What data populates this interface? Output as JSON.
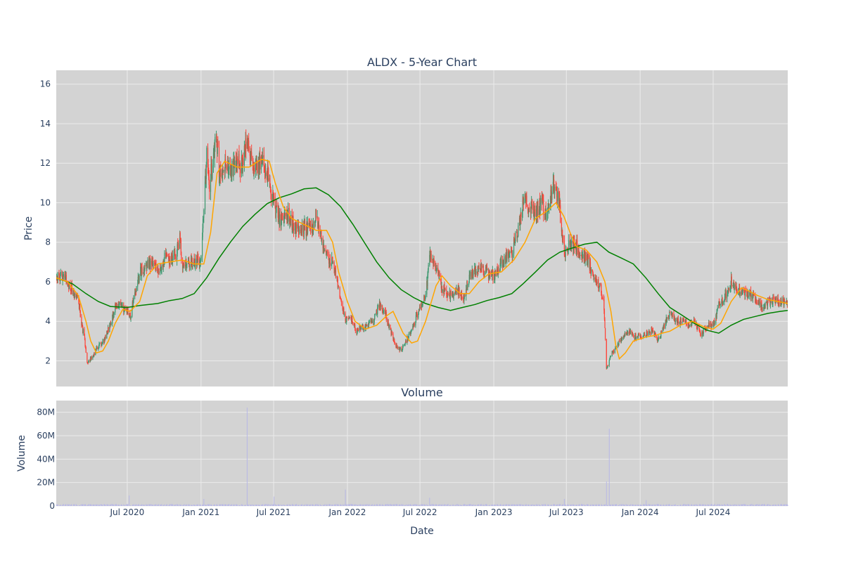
{
  "chart_data": [
    {
      "type": "candlestick",
      "title": "ALDX - 5-Year Chart",
      "xlabel": "",
      "ylabel": "Price",
      "ylim": [
        0.7,
        16.7
      ],
      "y_ticks": [
        2,
        4,
        6,
        8,
        10,
        12,
        14,
        16
      ],
      "x_range": [
        "2020-01-06",
        "2025-01-03"
      ],
      "x_ticks": [
        {
          "date": "2020-07-01",
          "label": "Jul 2020"
        },
        {
          "date": "2021-01-01",
          "label": "Jan 2021"
        },
        {
          "date": "2021-07-01",
          "label": "Jul 2021"
        },
        {
          "date": "2022-01-01",
          "label": "Jan 2022"
        },
        {
          "date": "2022-07-01",
          "label": "Jul 2022"
        },
        {
          "date": "2023-01-01",
          "label": "Jan 2023"
        },
        {
          "date": "2023-07-01",
          "label": "Jul 2023"
        },
        {
          "date": "2024-01-01",
          "label": "Jan 2024"
        },
        {
          "date": "2024-07-01",
          "label": "Jul 2024"
        }
      ],
      "grid": true,
      "colors": {
        "background": "#d3d3d3",
        "grid": "#ebebeb",
        "up": "#3d9970",
        "down": "#ff4136",
        "ma_short": "#ffa500",
        "ma_long": "#008000"
      },
      "price_path": [
        [
          "2020-01-06",
          6.2
        ],
        [
          "2020-01-20",
          6.3
        ],
        [
          "2020-02-03",
          6.0
        ],
        [
          "2020-02-17",
          5.5
        ],
        [
          "2020-03-02",
          5.0
        ],
        [
          "2020-03-09",
          3.8
        ],
        [
          "2020-03-16",
          3.2
        ],
        [
          "2020-03-23",
          1.9
        ],
        [
          "2020-04-06",
          2.2
        ],
        [
          "2020-04-20",
          2.8
        ],
        [
          "2020-05-04",
          3.0
        ],
        [
          "2020-05-18",
          3.8
        ],
        [
          "2020-06-01",
          4.7
        ],
        [
          "2020-06-15",
          4.8
        ],
        [
          "2020-07-01",
          4.5
        ],
        [
          "2020-07-08",
          4.2
        ],
        [
          "2020-07-20",
          5.5
        ],
        [
          "2020-08-03",
          6.5
        ],
        [
          "2020-08-17",
          6.8
        ],
        [
          "2020-09-01",
          7.0
        ],
        [
          "2020-09-15",
          6.5
        ],
        [
          "2020-10-01",
          7.2
        ],
        [
          "2020-10-15",
          7.0
        ],
        [
          "2020-11-01",
          7.5
        ],
        [
          "2020-11-09",
          8.3
        ],
        [
          "2020-11-16",
          6.8
        ],
        [
          "2020-12-01",
          6.9
        ],
        [
          "2020-12-15",
          7.0
        ],
        [
          "2021-01-01",
          7.0
        ],
        [
          "2021-01-08",
          9.5
        ],
        [
          "2021-01-15",
          12.5
        ],
        [
          "2021-01-22",
          11.0
        ],
        [
          "2021-02-01",
          12.2
        ],
        [
          "2021-02-08",
          13.5
        ],
        [
          "2021-02-15",
          11.5
        ],
        [
          "2021-03-01",
          12.0
        ],
        [
          "2021-03-15",
          11.5
        ],
        [
          "2021-04-01",
          12.0
        ],
        [
          "2021-04-15",
          11.8
        ],
        [
          "2021-04-26",
          13.5
        ],
        [
          "2021-05-03",
          12.2
        ],
        [
          "2021-05-17",
          11.7
        ],
        [
          "2021-06-01",
          12.3
        ],
        [
          "2021-06-15",
          11.5
        ],
        [
          "2021-07-01",
          10.0
        ],
        [
          "2021-07-15",
          9.0
        ],
        [
          "2021-08-01",
          9.5
        ],
        [
          "2021-08-15",
          9.0
        ],
        [
          "2021-09-01",
          8.5
        ],
        [
          "2021-09-15",
          8.8
        ],
        [
          "2021-10-01",
          8.5
        ],
        [
          "2021-10-15",
          9.3
        ],
        [
          "2021-11-01",
          8.0
        ],
        [
          "2021-11-15",
          7.2
        ],
        [
          "2021-11-29",
          6.8
        ],
        [
          "2021-12-27",
          4.0
        ],
        [
          "2022-01-10",
          4.2
        ],
        [
          "2022-01-24",
          3.5
        ],
        [
          "2022-02-07",
          3.7
        ],
        [
          "2022-02-21",
          3.8
        ],
        [
          "2022-03-07",
          4.0
        ],
        [
          "2022-03-21",
          4.8
        ],
        [
          "2022-04-04",
          4.5
        ],
        [
          "2022-04-18",
          3.5
        ],
        [
          "2022-05-02",
          2.8
        ],
        [
          "2022-05-16",
          2.5
        ],
        [
          "2022-06-01",
          3.2
        ],
        [
          "2022-06-15",
          3.8
        ],
        [
          "2022-07-01",
          4.8
        ],
        [
          "2022-07-15",
          5.2
        ],
        [
          "2022-07-25",
          7.3
        ],
        [
          "2022-08-08",
          7.0
        ],
        [
          "2022-08-22",
          5.8
        ],
        [
          "2022-09-05",
          5.5
        ],
        [
          "2022-09-19",
          5.3
        ],
        [
          "2022-10-03",
          5.5
        ],
        [
          "2022-10-17",
          5.2
        ],
        [
          "2022-11-01",
          6.2
        ],
        [
          "2022-11-15",
          6.5
        ],
        [
          "2022-12-01",
          6.8
        ],
        [
          "2022-12-15",
          6.5
        ],
        [
          "2023-01-01",
          6.3
        ],
        [
          "2023-01-15",
          6.8
        ],
        [
          "2023-02-01",
          7.2
        ],
        [
          "2023-02-15",
          7.5
        ],
        [
          "2023-03-01",
          8.5
        ],
        [
          "2023-03-15",
          10.2
        ],
        [
          "2023-04-01",
          9.8
        ],
        [
          "2023-04-15",
          9.5
        ],
        [
          "2023-05-01",
          10.0
        ],
        [
          "2023-05-15",
          9.3
        ],
        [
          "2023-05-29",
          11.0
        ],
        [
          "2023-06-12",
          10.3
        ],
        [
          "2023-06-26",
          7.2
        ],
        [
          "2023-07-10",
          8.0
        ],
        [
          "2023-07-24",
          7.8
        ],
        [
          "2023-08-07",
          7.5
        ],
        [
          "2023-08-21",
          7.2
        ],
        [
          "2023-09-04",
          6.5
        ],
        [
          "2023-09-18",
          6.0
        ],
        [
          "2023-10-02",
          5.2
        ],
        [
          "2023-10-09",
          1.6
        ],
        [
          "2023-10-23",
          2.4
        ],
        [
          "2023-11-06",
          2.8
        ],
        [
          "2023-11-20",
          3.2
        ],
        [
          "2023-12-04",
          3.5
        ],
        [
          "2023-12-18",
          3.2
        ],
        [
          "2024-01-01",
          3.3
        ],
        [
          "2024-01-15",
          3.3
        ],
        [
          "2024-02-01",
          3.6
        ],
        [
          "2024-02-15",
          3.0
        ],
        [
          "2024-03-01",
          3.8
        ],
        [
          "2024-03-15",
          4.5
        ],
        [
          "2024-04-01",
          4.0
        ],
        [
          "2024-04-15",
          4.0
        ],
        [
          "2024-05-01",
          3.8
        ],
        [
          "2024-05-15",
          4.0
        ],
        [
          "2024-06-01",
          3.3
        ],
        [
          "2024-06-15",
          3.8
        ],
        [
          "2024-07-01",
          3.8
        ],
        [
          "2024-07-15",
          4.8
        ],
        [
          "2024-08-01",
          5.3
        ],
        [
          "2024-08-15",
          6.0
        ],
        [
          "2024-09-01",
          5.5
        ],
        [
          "2024-09-15",
          5.4
        ],
        [
          "2024-10-01",
          5.5
        ],
        [
          "2024-10-15",
          5.0
        ],
        [
          "2024-11-01",
          4.8
        ],
        [
          "2024-11-15",
          5.0
        ],
        [
          "2024-12-01",
          5.1
        ],
        [
          "2024-12-15",
          5.0
        ],
        [
          "2025-01-03",
          4.9
        ]
      ],
      "moving_average_short": [
        [
          "2020-01-06",
          6.2
        ],
        [
          "2020-02-03",
          6.0
        ],
        [
          "2020-03-01",
          5.3
        ],
        [
          "2020-03-20",
          4.0
        ],
        [
          "2020-04-01",
          3.0
        ],
        [
          "2020-04-15",
          2.4
        ],
        [
          "2020-05-01",
          2.5
        ],
        [
          "2020-05-15",
          3.0
        ],
        [
          "2020-06-01",
          3.9
        ],
        [
          "2020-06-20",
          4.6
        ],
        [
          "2020-07-08",
          4.5
        ],
        [
          "2020-08-01",
          5.0
        ],
        [
          "2020-08-20",
          6.3
        ],
        [
          "2020-09-15",
          6.9
        ],
        [
          "2020-10-15",
          7.0
        ],
        [
          "2020-11-15",
          7.1
        ],
        [
          "2020-12-15",
          6.9
        ],
        [
          "2021-01-08",
          6.9
        ],
        [
          "2021-01-25",
          8.5
        ],
        [
          "2021-02-10",
          11.5
        ],
        [
          "2021-03-01",
          12.1
        ],
        [
          "2021-04-01",
          11.8
        ],
        [
          "2021-05-01",
          11.8
        ],
        [
          "2021-06-01",
          12.2
        ],
        [
          "2021-06-20",
          12.1
        ],
        [
          "2021-07-05",
          11.0
        ],
        [
          "2021-07-25",
          9.8
        ],
        [
          "2021-08-15",
          9.2
        ],
        [
          "2021-09-15",
          8.9
        ],
        [
          "2021-10-15",
          8.6
        ],
        [
          "2021-11-10",
          8.6
        ],
        [
          "2021-11-25",
          8.0
        ],
        [
          "2021-12-10",
          6.5
        ],
        [
          "2022-01-01",
          5.0
        ],
        [
          "2022-01-20",
          4.0
        ],
        [
          "2022-02-15",
          3.6
        ],
        [
          "2022-03-15",
          3.8
        ],
        [
          "2022-04-10",
          4.3
        ],
        [
          "2022-04-25",
          4.5
        ],
        [
          "2022-05-20",
          3.4
        ],
        [
          "2022-06-10",
          2.9
        ],
        [
          "2022-06-25",
          3.0
        ],
        [
          "2022-07-15",
          4.0
        ],
        [
          "2022-08-10",
          5.8
        ],
        [
          "2022-08-25",
          6.3
        ],
        [
          "2022-09-15",
          5.8
        ],
        [
          "2022-10-10",
          5.4
        ],
        [
          "2022-11-01",
          5.4
        ],
        [
          "2022-11-25",
          6.0
        ],
        [
          "2022-12-20",
          6.4
        ],
        [
          "2023-01-20",
          6.5
        ],
        [
          "2023-02-20",
          7.1
        ],
        [
          "2023-03-20",
          8.0
        ],
        [
          "2023-04-15",
          9.2
        ],
        [
          "2023-05-15",
          9.6
        ],
        [
          "2023-06-05",
          10.0
        ],
        [
          "2023-06-25",
          9.3
        ],
        [
          "2023-07-10",
          8.5
        ],
        [
          "2023-07-25",
          7.8
        ],
        [
          "2023-08-20",
          7.6
        ],
        [
          "2023-09-15",
          7.0
        ],
        [
          "2023-10-05",
          6.0
        ],
        [
          "2023-10-20",
          4.5
        ],
        [
          "2023-11-01",
          2.8
        ],
        [
          "2023-11-10",
          2.1
        ],
        [
          "2023-11-25",
          2.4
        ],
        [
          "2023-12-15",
          3.0
        ],
        [
          "2024-01-15",
          3.2
        ],
        [
          "2024-02-10",
          3.3
        ],
        [
          "2024-02-25",
          3.4
        ],
        [
          "2024-03-15",
          3.5
        ],
        [
          "2024-04-10",
          3.8
        ],
        [
          "2024-05-10",
          4.0
        ],
        [
          "2024-06-10",
          3.7
        ],
        [
          "2024-07-01",
          3.6
        ],
        [
          "2024-07-20",
          3.9
        ],
        [
          "2024-08-15",
          5.0
        ],
        [
          "2024-09-10",
          5.7
        ],
        [
          "2024-10-01",
          5.5
        ],
        [
          "2024-10-20",
          5.3
        ],
        [
          "2024-11-15",
          5.1
        ],
        [
          "2024-12-10",
          5.0
        ],
        [
          "2025-01-03",
          4.9
        ]
      ],
      "moving_average_long": [
        [
          "2020-01-06",
          6.2
        ],
        [
          "2020-02-15",
          5.9
        ],
        [
          "2020-03-20",
          5.4
        ],
        [
          "2020-04-20",
          5.0
        ],
        [
          "2020-05-20",
          4.75
        ],
        [
          "2020-07-01",
          4.7
        ],
        [
          "2020-08-01",
          4.8
        ],
        [
          "2020-09-15",
          4.9
        ],
        [
          "2020-10-15",
          5.05
        ],
        [
          "2020-11-15",
          5.15
        ],
        [
          "2020-12-15",
          5.4
        ],
        [
          "2021-01-15",
          6.2
        ],
        [
          "2021-02-15",
          7.2
        ],
        [
          "2021-03-15",
          8.0
        ],
        [
          "2021-04-15",
          8.8
        ],
        [
          "2021-05-15",
          9.4
        ],
        [
          "2021-06-15",
          9.95
        ],
        [
          "2021-07-15",
          10.25
        ],
        [
          "2021-08-15",
          10.45
        ],
        [
          "2021-09-15",
          10.7
        ],
        [
          "2021-10-15",
          10.75
        ],
        [
          "2021-11-15",
          10.4
        ],
        [
          "2021-12-15",
          9.8
        ],
        [
          "2022-01-15",
          8.9
        ],
        [
          "2022-02-15",
          7.9
        ],
        [
          "2022-03-15",
          7.0
        ],
        [
          "2022-04-15",
          6.2
        ],
        [
          "2022-05-15",
          5.6
        ],
        [
          "2022-06-15",
          5.2
        ],
        [
          "2022-07-15",
          4.9
        ],
        [
          "2022-08-15",
          4.7
        ],
        [
          "2022-09-15",
          4.55
        ],
        [
          "2022-10-15",
          4.7
        ],
        [
          "2022-11-15",
          4.85
        ],
        [
          "2022-12-15",
          5.05
        ],
        [
          "2023-01-15",
          5.2
        ],
        [
          "2023-02-15",
          5.4
        ],
        [
          "2023-03-15",
          5.9
        ],
        [
          "2023-04-15",
          6.5
        ],
        [
          "2023-05-15",
          7.1
        ],
        [
          "2023-06-15",
          7.5
        ],
        [
          "2023-07-15",
          7.7
        ],
        [
          "2023-08-15",
          7.9
        ],
        [
          "2023-09-15",
          8.0
        ],
        [
          "2023-10-15",
          7.5
        ],
        [
          "2023-11-15",
          7.2
        ],
        [
          "2023-12-15",
          6.9
        ],
        [
          "2024-01-15",
          6.2
        ],
        [
          "2024-02-15",
          5.4
        ],
        [
          "2024-03-15",
          4.7
        ],
        [
          "2024-04-15",
          4.3
        ],
        [
          "2024-05-15",
          3.9
        ],
        [
          "2024-06-15",
          3.55
        ],
        [
          "2024-07-15",
          3.4
        ],
        [
          "2024-08-15",
          3.8
        ],
        [
          "2024-09-15",
          4.1
        ],
        [
          "2024-10-15",
          4.25
        ],
        [
          "2024-11-15",
          4.4
        ],
        [
          "2024-12-15",
          4.5
        ],
        [
          "2025-01-03",
          4.55
        ]
      ]
    },
    {
      "type": "bar",
      "title": "Volume",
      "xlabel": "Date",
      "ylabel": "Volume",
      "ylim": [
        0,
        90000000
      ],
      "y_ticks": [
        {
          "value": 0,
          "label": "0"
        },
        {
          "value": 20000000,
          "label": "20M"
        },
        {
          "value": 40000000,
          "label": "40M"
        },
        {
          "value": 60000000,
          "label": "60M"
        },
        {
          "value": 80000000,
          "label": "80M"
        }
      ],
      "x_ticks": [
        {
          "date": "2020-07-01",
          "label": "Jul 2020"
        },
        {
          "date": "2021-01-01",
          "label": "Jan 2021"
        },
        {
          "date": "2021-07-01",
          "label": "Jul 2021"
        },
        {
          "date": "2022-01-01",
          "label": "Jan 2022"
        },
        {
          "date": "2022-07-01",
          "label": "Jul 2022"
        },
        {
          "date": "2023-01-01",
          "label": "Jan 2023"
        },
        {
          "date": "2023-07-01",
          "label": "Jul 2023"
        },
        {
          "date": "2024-01-01",
          "label": "Jan 2024"
        },
        {
          "date": "2024-07-01",
          "label": "Jul 2024"
        }
      ],
      "grid": true,
      "colors": {
        "background": "#d3d3d3",
        "grid": "#ebebeb",
        "bar": "#b8b8e6"
      },
      "notable_values": [
        [
          "2020-07-06",
          9000000
        ],
        [
          "2021-01-08",
          6000000
        ],
        [
          "2021-04-26",
          84000000
        ],
        [
          "2021-07-02",
          8000000
        ],
        [
          "2021-12-27",
          14000000
        ],
        [
          "2022-07-25",
          7000000
        ],
        [
          "2023-06-26",
          6000000
        ],
        [
          "2023-10-09",
          21000000
        ],
        [
          "2023-10-16",
          66000000
        ],
        [
          "2024-01-16",
          5000000
        ]
      ],
      "typical_volume": 1000000
    }
  ]
}
